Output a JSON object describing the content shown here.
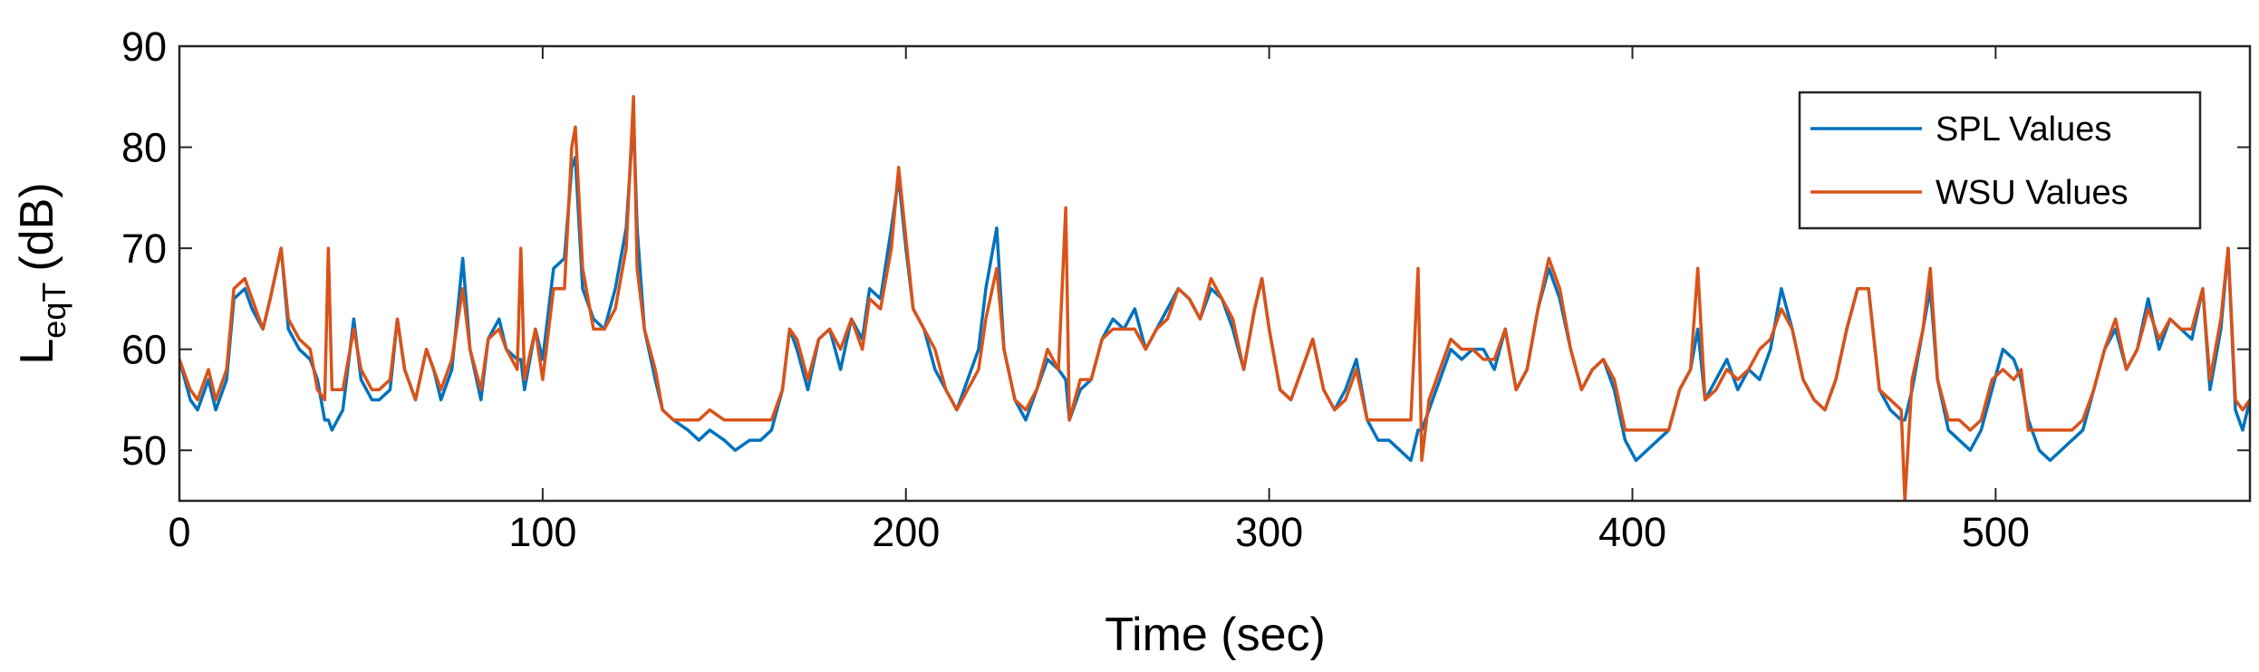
{
  "chart_data": {
    "type": "line",
    "xlabel": "Time (sec)",
    "ylabel": "L",
    "ylabel_subscript": "eqT",
    "ylabel_unit": "(dB)",
    "xlim": [
      0,
      570
    ],
    "ylim": [
      45,
      90
    ],
    "xticks": [
      0,
      100,
      200,
      300,
      400,
      500
    ],
    "yticks": [
      50,
      60,
      70,
      80,
      90
    ],
    "legend": "northeast",
    "x": [
      0,
      3,
      5,
      8,
      10,
      13,
      15,
      18,
      20,
      23,
      25,
      28,
      30,
      33,
      36,
      38,
      40,
      41,
      42,
      45,
      48,
      50,
      53,
      55,
      58,
      60,
      62,
      65,
      68,
      70,
      72,
      75,
      78,
      80,
      83,
      85,
      88,
      90,
      93,
      94,
      95,
      98,
      100,
      103,
      106,
      108,
      109,
      111,
      114,
      117,
      120,
      123,
      125,
      126,
      128,
      131,
      133,
      136,
      140,
      143,
      146,
      150,
      153,
      157,
      160,
      163,
      166,
      168,
      170,
      173,
      176,
      179,
      182,
      185,
      188,
      190,
      193,
      196,
      198,
      200,
      202,
      205,
      208,
      211,
      214,
      217,
      220,
      222,
      225,
      227,
      230,
      233,
      236,
      239,
      242,
      244,
      245,
      248,
      251,
      254,
      257,
      260,
      263,
      266,
      269,
      272,
      275,
      278,
      281,
      284,
      287,
      290,
      293,
      296,
      298,
      300,
      303,
      306,
      309,
      312,
      315,
      318,
      321,
      324,
      327,
      330,
      333,
      336,
      339,
      341,
      342,
      344,
      347,
      350,
      353,
      356,
      359,
      362,
      365,
      368,
      371,
      374,
      377,
      380,
      383,
      386,
      389,
      392,
      395,
      398,
      401,
      404,
      407,
      410,
      413,
      416,
      418,
      420,
      423,
      426,
      429,
      432,
      435,
      438,
      441,
      444,
      447,
      450,
      453,
      456,
      459,
      462,
      465,
      468,
      471,
      474,
      475,
      477,
      480,
      482,
      484,
      487,
      490,
      493,
      496,
      499,
      502,
      505,
      507,
      509,
      512,
      515,
      518,
      521,
      524,
      527,
      530,
      533,
      536,
      539,
      542,
      545,
      548,
      551,
      554,
      557,
      559,
      562,
      564,
      566,
      568,
      570
    ],
    "series": [
      {
        "name": "SPL Values",
        "color": "#0072BD",
        "values": [
          59,
          55,
          54,
          57,
          54,
          57,
          65,
          66,
          64,
          62,
          65,
          70,
          62,
          60,
          59,
          57,
          53,
          53,
          52,
          54,
          63,
          57,
          55,
          55,
          56,
          63,
          58,
          55,
          60,
          58,
          55,
          58,
          69,
          60,
          55,
          61,
          63,
          60,
          59,
          59,
          56,
          62,
          59,
          68,
          69,
          78,
          79,
          66,
          63,
          62,
          66,
          72,
          83,
          72,
          62,
          57,
          54,
          53,
          52,
          51,
          52,
          51,
          50,
          51,
          51,
          52,
          56,
          62,
          60,
          56,
          61,
          62,
          58,
          63,
          61,
          66,
          65,
          72,
          77,
          70,
          64,
          62,
          58,
          56,
          54,
          57,
          60,
          66,
          72,
          60,
          55,
          53,
          56,
          59,
          58,
          57,
          53,
          56,
          57,
          61,
          63,
          62,
          64,
          60,
          62,
          64,
          66,
          65,
          63,
          66,
          65,
          62,
          58,
          64,
          67,
          62,
          56,
          55,
          58,
          61,
          56,
          54,
          56,
          59,
          53,
          51,
          51,
          50,
          49,
          52,
          52,
          54,
          57,
          60,
          59,
          60,
          60,
          58,
          62,
          56,
          58,
          64,
          68,
          65,
          60,
          56,
          58,
          59,
          56,
          51,
          49,
          50,
          51,
          52,
          56,
          58,
          62,
          55,
          57,
          59,
          56,
          58,
          57,
          60,
          66,
          62,
          57,
          55,
          54,
          57,
          62,
          66,
          66,
          56,
          54,
          53,
          53,
          56,
          62,
          66,
          57,
          52,
          51,
          50,
          52,
          56,
          60,
          59,
          57,
          53,
          50,
          49,
          50,
          51,
          52,
          56,
          60,
          62,
          58,
          60,
          65,
          60,
          63,
          62,
          61,
          66,
          56,
          62,
          70,
          54,
          52,
          55
        ]
      },
      {
        "name": "WSU Values",
        "color": "#D95319",
        "values": [
          59,
          56,
          55,
          58,
          55,
          58,
          66,
          67,
          65,
          62,
          65,
          70,
          63,
          61,
          60,
          56,
          55,
          70,
          56,
          56,
          62,
          58,
          56,
          56,
          57,
          63,
          58,
          55,
          60,
          58,
          56,
          59,
          66,
          60,
          56,
          61,
          62,
          60,
          58,
          70,
          57,
          62,
          57,
          66,
          66,
          80,
          82,
          68,
          62,
          62,
          64,
          70,
          85,
          68,
          62,
          58,
          54,
          53,
          53,
          53,
          54,
          53,
          53,
          53,
          53,
          53,
          56,
          62,
          61,
          57,
          61,
          62,
          60,
          63,
          60,
          65,
          64,
          70,
          78,
          71,
          64,
          62,
          60,
          56,
          54,
          56,
          58,
          63,
          68,
          60,
          55,
          54,
          56,
          60,
          58,
          74,
          53,
          57,
          57,
          61,
          62,
          62,
          62,
          60,
          62,
          63,
          66,
          65,
          63,
          67,
          65,
          63,
          58,
          64,
          67,
          62,
          56,
          55,
          58,
          61,
          56,
          54,
          55,
          58,
          53,
          53,
          53,
          53,
          53,
          68,
          49,
          55,
          58,
          61,
          60,
          60,
          59,
          59,
          62,
          56,
          58,
          64,
          69,
          66,
          60,
          56,
          58,
          59,
          57,
          52,
          52,
          52,
          52,
          52,
          56,
          58,
          68,
          55,
          56,
          58,
          57,
          58,
          60,
          61,
          64,
          62,
          57,
          55,
          54,
          57,
          62,
          66,
          66,
          56,
          55,
          54,
          45,
          57,
          62,
          68,
          57,
          53,
          53,
          52,
          53,
          57,
          58,
          57,
          58,
          52,
          52,
          52,
          52,
          52,
          53,
          56,
          60,
          63,
          58,
          60,
          64,
          61,
          63,
          62,
          62,
          66,
          57,
          63,
          70,
          55,
          54,
          55
        ]
      }
    ]
  }
}
